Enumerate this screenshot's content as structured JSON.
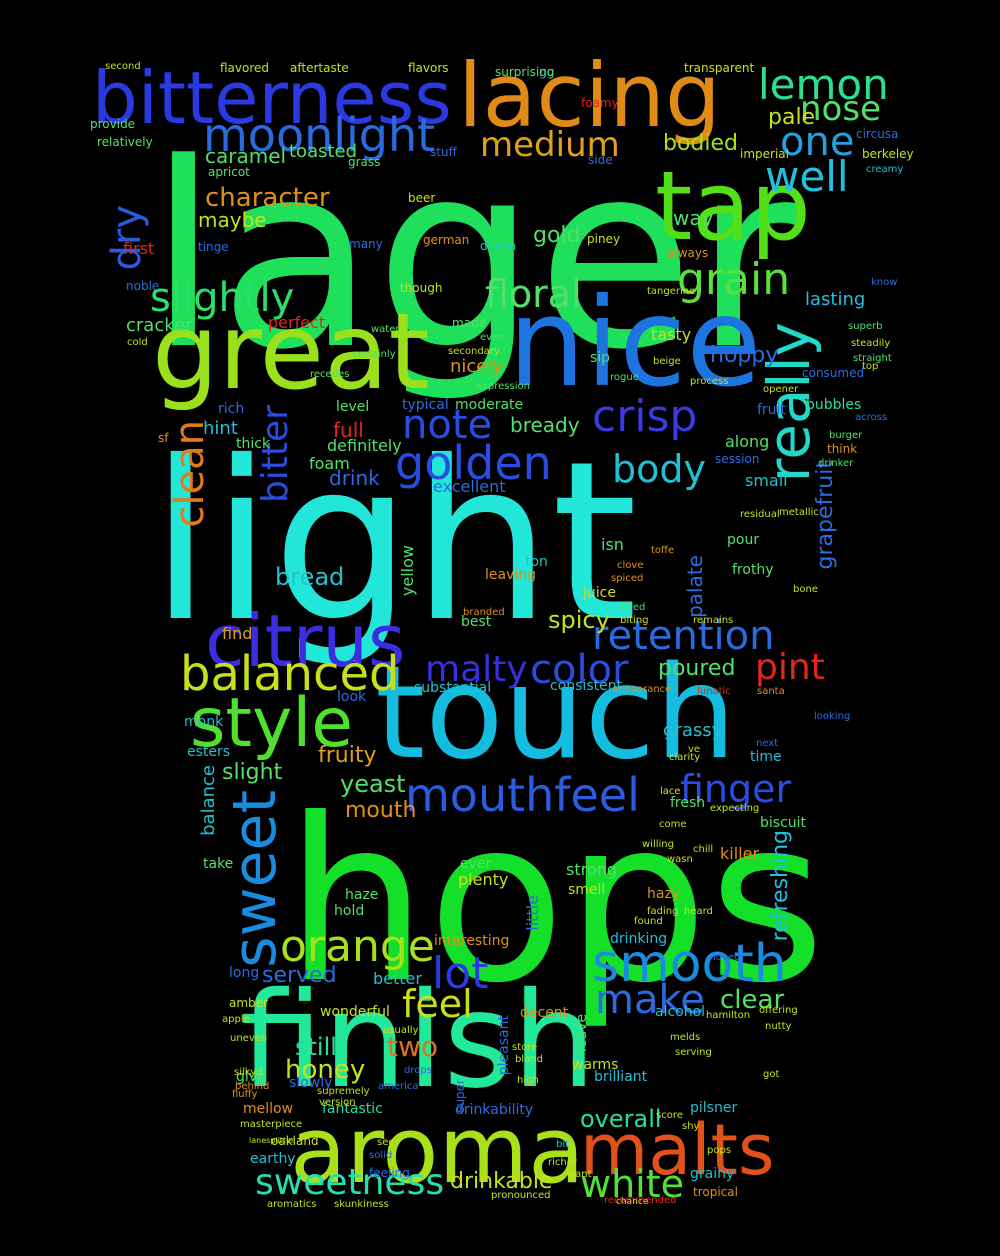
{
  "words": [
    {
      "text": "lager",
      "color": "#1fe05a"
    },
    {
      "text": "light",
      "color": "#22e6d8"
    },
    {
      "text": "hops",
      "color": "#14e02a"
    },
    {
      "text": "touch",
      "color": "#14bde0"
    },
    {
      "text": "finish",
      "color": "#22e89a"
    },
    {
      "text": "nice",
      "color": "#1d74e0"
    },
    {
      "text": "great",
      "color": "#9be01c"
    },
    {
      "text": "aroma",
      "color": "#a8e01a"
    },
    {
      "text": "lacing",
      "color": "#e08a18"
    },
    {
      "text": "bitterness",
      "color": "#2b3ae0"
    },
    {
      "text": "tap",
      "color": "#52e018"
    },
    {
      "text": "malts",
      "color": "#e0521a"
    },
    {
      "text": "citrus",
      "color": "#3a2ee0"
    },
    {
      "text": "style",
      "color": "#52e030"
    },
    {
      "text": "balanced",
      "color": "#c8e01a"
    },
    {
      "text": "smooth",
      "color": "#1a8ce0"
    },
    {
      "text": "sweet",
      "color": "#1a8ce0"
    },
    {
      "text": "orange",
      "color": "#a8e01a"
    },
    {
      "text": "golden",
      "color": "#2a4ce0"
    },
    {
      "text": "mouthfeel",
      "color": "#2a5ce0"
    },
    {
      "text": "slightly",
      "color": "#2ae068"
    },
    {
      "text": "moonlight",
      "color": "#2a6ce0"
    },
    {
      "text": "lemon",
      "color": "#2ae090"
    },
    {
      "text": "really",
      "color": "#22d8c8"
    },
    {
      "text": "clean",
      "color": "#e07a1a"
    },
    {
      "text": "retention",
      "color": "#2a6ce0"
    },
    {
      "text": "crisp",
      "color": "#3a3ae0"
    },
    {
      "text": "lot",
      "color": "#2a3ae0"
    },
    {
      "text": "grain",
      "color": "#5ae03a"
    },
    {
      "text": "floral",
      "color": "#52e06a"
    },
    {
      "text": "well",
      "color": "#22c0e0"
    },
    {
      "text": "one",
      "color": "#22a0e0"
    },
    {
      "text": "note",
      "color": "#2a4ce0"
    },
    {
      "text": "body",
      "color": "#22c0d0"
    },
    {
      "text": "color",
      "color": "#2a4ce0"
    },
    {
      "text": "medium",
      "color": "#e0a01a"
    },
    {
      "text": "nose",
      "color": "#52e06a"
    },
    {
      "text": "bitter",
      "color": "#2a4ce0"
    },
    {
      "text": "dry",
      "color": "#2a5ce0"
    },
    {
      "text": "make",
      "color": "#2a6ce0"
    },
    {
      "text": "sweetness",
      "color": "#22e0b0"
    },
    {
      "text": "white",
      "color": "#52e03a"
    },
    {
      "text": "feel",
      "color": "#c8e01a"
    },
    {
      "text": "finger",
      "color": "#2a4ce0"
    },
    {
      "text": "pint",
      "color": "#e0281a"
    },
    {
      "text": "malty",
      "color": "#3a2ee0"
    },
    {
      "text": "character",
      "color": "#e0901a"
    },
    {
      "text": "bread",
      "color": "#22c0d0"
    },
    {
      "text": "honey",
      "color": "#c8e01a"
    },
    {
      "text": "still",
      "color": "#22e0a0"
    },
    {
      "text": "two",
      "color": "#e0701a"
    },
    {
      "text": "clear",
      "color": "#52e06a"
    },
    {
      "text": "spicy",
      "color": "#c8e01a"
    },
    {
      "text": "hoppy",
      "color": "#2a6ce0"
    },
    {
      "text": "pale",
      "color": "#c8e01a"
    },
    {
      "text": "bodied",
      "color": "#a8e01a"
    },
    {
      "text": "gold",
      "color": "#52e06a"
    },
    {
      "text": "drinkable",
      "color": "#c8e01a"
    },
    {
      "text": "overall",
      "color": "#22e0a0"
    },
    {
      "text": "grapefruit",
      "color": "#2a6ce0"
    },
    {
      "text": "refreshing",
      "color": "#22c0e0"
    },
    {
      "text": "served",
      "color": "#2a6ce0"
    },
    {
      "text": "yeast",
      "color": "#52e06a"
    },
    {
      "text": "slight",
      "color": "#52e06a"
    },
    {
      "text": "fruity",
      "color": "#e0a01a"
    },
    {
      "text": "mouth",
      "color": "#e0901a"
    },
    {
      "text": "palate",
      "color": "#2a6ce0"
    },
    {
      "text": "grassy",
      "color": "#22c0d0"
    },
    {
      "text": "poured",
      "color": "#52e06a"
    },
    {
      "text": "caramel",
      "color": "#52e06a"
    },
    {
      "text": "toasted",
      "color": "#52e06a"
    },
    {
      "text": "maybe",
      "color": "#c8e01a"
    },
    {
      "text": "hint",
      "color": "#22c0e0"
    },
    {
      "text": "full",
      "color": "#e0281a"
    },
    {
      "text": "bready",
      "color": "#52e06a"
    },
    {
      "text": "lasting",
      "color": "#22c0e0"
    },
    {
      "text": "cracker",
      "color": "#52e06a"
    },
    {
      "text": "perfect",
      "color": "#e0281a"
    },
    {
      "text": "nicely",
      "color": "#e0901a"
    },
    {
      "text": "tasty",
      "color": "#c8e01a"
    },
    {
      "text": "way",
      "color": "#52e06a"
    },
    {
      "text": "first",
      "color": "#e0281a"
    },
    {
      "text": "bubbles",
      "color": "#22e0a0"
    },
    {
      "text": "fruit",
      "color": "#2a6ce0"
    },
    {
      "text": "along",
      "color": "#52e06a"
    },
    {
      "text": "small",
      "color": "#22c0d0"
    },
    {
      "text": "drink",
      "color": "#2a6ce0"
    },
    {
      "text": "definitely",
      "color": "#52e06a"
    },
    {
      "text": "foam",
      "color": "#52e06a"
    },
    {
      "text": "excellent",
      "color": "#2a6ce0"
    },
    {
      "text": "balance",
      "color": "#22c0d0"
    },
    {
      "text": "yellow",
      "color": "#52e06a"
    },
    {
      "text": "find",
      "color": "#e0a01a"
    },
    {
      "text": "best",
      "color": "#52e06a"
    },
    {
      "text": "consistent",
      "color": "#22c0d0"
    },
    {
      "text": "substantial",
      "color": "#22c0d0"
    },
    {
      "text": "look",
      "color": "#2a6ce0"
    },
    {
      "text": "time",
      "color": "#22c0e0"
    },
    {
      "text": "fresh",
      "color": "#52e06a"
    },
    {
      "text": "biscuit",
      "color": "#52e06a"
    },
    {
      "text": "killer",
      "color": "#e0901a"
    },
    {
      "text": "strong",
      "color": "#52e06a"
    },
    {
      "text": "smell",
      "color": "#c8e01a"
    },
    {
      "text": "hazy",
      "color": "#e0901a"
    },
    {
      "text": "drinking",
      "color": "#22c0d0"
    },
    {
      "text": "interesting",
      "color": "#e0901a"
    },
    {
      "text": "little",
      "color": "#2a6ce0"
    },
    {
      "text": "better",
      "color": "#22c0d0"
    },
    {
      "text": "wonderful",
      "color": "#c8e01a"
    },
    {
      "text": "alcohol",
      "color": "#22c0d0"
    },
    {
      "text": "decent",
      "color": "#e0901a"
    },
    {
      "text": "pleasant",
      "color": "#2a6ce0"
    },
    {
      "text": "leave",
      "color": "#52e06a"
    },
    {
      "text": "brilliant",
      "color": "#22c0e0"
    },
    {
      "text": "warms",
      "color": "#c8e01a"
    },
    {
      "text": "fantastic",
      "color": "#22e0a0"
    },
    {
      "text": "drinkability",
      "color": "#2a6ce0"
    },
    {
      "text": "pilsner",
      "color": "#22c0d0"
    },
    {
      "text": "mellow",
      "color": "#e0901a"
    },
    {
      "text": "earthy",
      "color": "#22c0d0"
    },
    {
      "text": "grainy",
      "color": "#22c0d0"
    },
    {
      "text": "tropical",
      "color": "#e0901a"
    },
    {
      "text": "amber",
      "color": "#c8e01a"
    },
    {
      "text": "slowly",
      "color": "#2a6ce0"
    },
    {
      "text": "long",
      "color": "#2a6ce0"
    },
    {
      "text": "haze",
      "color": "#52e06a"
    },
    {
      "text": "plenty",
      "color": "#c8e01a"
    },
    {
      "text": "ever",
      "color": "#52e06a"
    },
    {
      "text": "hold",
      "color": "#52e06a"
    },
    {
      "text": "take",
      "color": "#52e06a"
    },
    {
      "text": "give",
      "color": "#52e06a"
    },
    {
      "text": "esters",
      "color": "#22c0d0"
    },
    {
      "text": "monk",
      "color": "#22c0d0"
    },
    {
      "text": "isn",
      "color": "#52e06a"
    },
    {
      "text": "pour",
      "color": "#52e06a"
    },
    {
      "text": "frothy",
      "color": "#52e06a"
    },
    {
      "text": "juice",
      "color": "#c8e01a"
    },
    {
      "text": "ton",
      "color": "#22c0d0"
    },
    {
      "text": "leaving",
      "color": "#e0901a"
    },
    {
      "text": "thick",
      "color": "#52e06a"
    },
    {
      "text": "rich",
      "color": "#2a6ce0"
    },
    {
      "text": "level",
      "color": "#52e06a"
    },
    {
      "text": "typical",
      "color": "#2a6ce0"
    },
    {
      "text": "moderate",
      "color": "#52e06a"
    },
    {
      "text": "sip",
      "color": "#52e06a"
    },
    {
      "text": "think",
      "color": "#e0901a"
    },
    {
      "text": "session",
      "color": "#2a6ce0"
    },
    {
      "text": "noble",
      "color": "#2a6ce0"
    },
    {
      "text": "sf",
      "color": "#e0901a"
    },
    {
      "text": "tinge",
      "color": "#2a6ce0"
    },
    {
      "text": "apricot",
      "color": "#52e06a"
    },
    {
      "text": "provide",
      "color": "#52e06a"
    },
    {
      "text": "relatively",
      "color": "#52e06a"
    },
    {
      "text": "german",
      "color": "#e0901a"
    },
    {
      "text": "beer",
      "color": "#c8e01a"
    },
    {
      "text": "stuff",
      "color": "#2a6ce0"
    },
    {
      "text": "piney",
      "color": "#c8e01a"
    },
    {
      "text": "though",
      "color": "#c8e01a"
    },
    {
      "text": "made",
      "color": "#52e06a"
    },
    {
      "text": "consumed",
      "color": "#2a6ce0"
    },
    {
      "text": "always",
      "color": "#e0901a"
    },
    {
      "text": "doesn",
      "color": "#22c0d0"
    },
    {
      "text": "go",
      "color": "#22c0d0"
    },
    {
      "text": "transparent",
      "color": "#c8e01a"
    },
    {
      "text": "flavors",
      "color": "#c8e01a"
    },
    {
      "text": "flavored",
      "color": "#c8e01a"
    },
    {
      "text": "aftertaste",
      "color": "#c8e01a"
    },
    {
      "text": "surprising",
      "color": "#52e06a"
    },
    {
      "text": "second",
      "color": "#c8e01a"
    },
    {
      "text": "circusa",
      "color": "#2a6ce0"
    },
    {
      "text": "berkeley",
      "color": "#c8e01a"
    },
    {
      "text": "creamy",
      "color": "#22c0d0"
    },
    {
      "text": "imperial",
      "color": "#c8e01a"
    },
    {
      "text": "foamy",
      "color": "#e0281a"
    },
    {
      "text": "side",
      "color": "#2a6ce0"
    },
    {
      "text": "grass",
      "color": "#52e06a"
    },
    {
      "text": "many",
      "color": "#2a6ce0"
    },
    {
      "text": "know",
      "color": "#2a6ce0"
    },
    {
      "text": "tangerine",
      "color": "#c8e01a"
    },
    {
      "text": "cold",
      "color": "#c8e01a"
    },
    {
      "text": "even",
      "color": "#52e06a"
    },
    {
      "text": "water",
      "color": "#52e06a"
    },
    {
      "text": "certainly",
      "color": "#52e06a"
    },
    {
      "text": "recedes",
      "color": "#52e06a"
    },
    {
      "text": "secondary",
      "color": "#c8e01a"
    },
    {
      "text": "expression",
      "color": "#52e06a"
    },
    {
      "text": "rogue",
      "color": "#52e06a"
    },
    {
      "text": "process",
      "color": "#c8e01a"
    },
    {
      "text": "beige",
      "color": "#c8e01a"
    },
    {
      "text": "opener",
      "color": "#c8e01a"
    },
    {
      "text": "top",
      "color": "#c8e01a"
    },
    {
      "text": "superb",
      "color": "#52e06a"
    },
    {
      "text": "steadily",
      "color": "#c8e01a"
    },
    {
      "text": "straight",
      "color": "#52e06a"
    },
    {
      "text": "across",
      "color": "#2a6ce0"
    },
    {
      "text": "burger",
      "color": "#52e06a"
    },
    {
      "text": "drinker",
      "color": "#52e06a"
    },
    {
      "text": "residual",
      "color": "#c8e01a"
    },
    {
      "text": "metallic",
      "color": "#c8e01a"
    },
    {
      "text": "bone",
      "color": "#c8e01a"
    },
    {
      "text": "toffe",
      "color": "#e0901a"
    },
    {
      "text": "clove",
      "color": "#e0901a"
    },
    {
      "text": "spiced",
      "color": "#e0901a"
    },
    {
      "text": "branded",
      "color": "#e0901a"
    },
    {
      "text": "biting",
      "color": "#c8e01a"
    },
    {
      "text": "remains",
      "color": "#c8e01a"
    },
    {
      "text": "filled",
      "color": "#52e06a"
    },
    {
      "text": "appearance",
      "color": "#e0901a"
    },
    {
      "text": "santa",
      "color": "#e0901a"
    },
    {
      "text": "lunatic",
      "color": "#e0281a"
    },
    {
      "text": "looking",
      "color": "#2a6ce0"
    },
    {
      "text": "ve",
      "color": "#c8e01a"
    },
    {
      "text": "next",
      "color": "#2a6ce0"
    },
    {
      "text": "clarity",
      "color": "#c8e01a"
    },
    {
      "text": "expecting",
      "color": "#c8e01a"
    },
    {
      "text": "come",
      "color": "#c8e01a"
    },
    {
      "text": "lace",
      "color": "#c8e01a"
    },
    {
      "text": "willing",
      "color": "#c8e01a"
    },
    {
      "text": "chill",
      "color": "#c8e01a"
    },
    {
      "text": "wasn",
      "color": "#c8e01a"
    },
    {
      "text": "fading",
      "color": "#c8e01a"
    },
    {
      "text": "found",
      "color": "#c8e01a"
    },
    {
      "text": "heard",
      "color": "#c8e01a"
    },
    {
      "text": "loved",
      "color": "#2a6ce0"
    },
    {
      "text": "hamilton",
      "color": "#c8e01a"
    },
    {
      "text": "offering",
      "color": "#c8e01a"
    },
    {
      "text": "nutty",
      "color": "#c8e01a"
    },
    {
      "text": "melds",
      "color": "#c8e01a"
    },
    {
      "text": "serving",
      "color": "#c8e01a"
    },
    {
      "text": "got",
      "color": "#c8e01a"
    },
    {
      "text": "score",
      "color": "#c8e01a"
    },
    {
      "text": "shy",
      "color": "#c8e01a"
    },
    {
      "text": "pops",
      "color": "#c8e01a"
    },
    {
      "text": "bit",
      "color": "#22c0d0"
    },
    {
      "text": "want",
      "color": "#c8e01a"
    },
    {
      "text": "richer",
      "color": "#c8e01a"
    },
    {
      "text": "pronounced",
      "color": "#c8e01a"
    },
    {
      "text": "recommended",
      "color": "#e0281a"
    },
    {
      "text": "chance",
      "color": "#c8e01a"
    },
    {
      "text": "feeling",
      "color": "#2a6ce0"
    },
    {
      "text": "solid",
      "color": "#2a6ce0"
    },
    {
      "text": "see",
      "color": "#c8e01a"
    },
    {
      "text": "oakland",
      "color": "#c8e01a"
    },
    {
      "text": "masterpiece",
      "color": "#c8e01a"
    },
    {
      "text": "fluffy",
      "color": "#e0901a"
    },
    {
      "text": "behind",
      "color": "#e0901a"
    },
    {
      "text": "silkyd",
      "color": "#c8e01a"
    },
    {
      "text": "uneven",
      "color": "#c8e01a"
    },
    {
      "text": "apple",
      "color": "#c8e01a"
    },
    {
      "text": "america",
      "color": "#2a6ce0"
    },
    {
      "text": "version",
      "color": "#c8e01a"
    },
    {
      "text": "supremely",
      "color": "#c8e01a"
    },
    {
      "text": "usually",
      "color": "#c8e01a"
    },
    {
      "text": "drops",
      "color": "#2a6ce0"
    },
    {
      "text": "high",
      "color": "#c8e01a"
    },
    {
      "text": "bland",
      "color": "#c8e01a"
    },
    {
      "text": "store",
      "color": "#c8e01a"
    },
    {
      "text": "super",
      "color": "#2a6ce0"
    },
    {
      "text": "aromatics",
      "color": "#c8e01a"
    },
    {
      "text": "skunkiness",
      "color": "#c8e01a"
    },
    {
      "text": "lanesplitter",
      "color": "#c8e01a"
    }
  ]
}
